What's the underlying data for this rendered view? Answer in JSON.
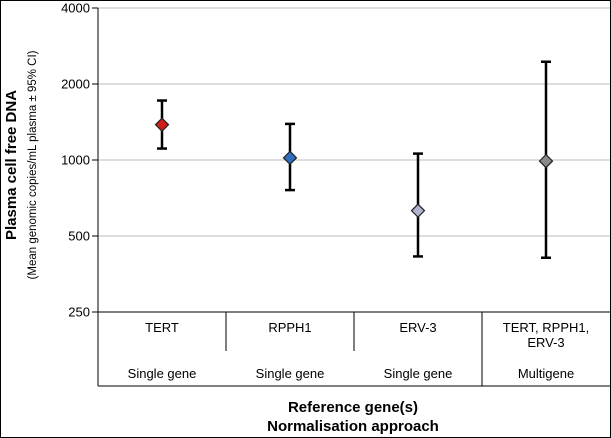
{
  "chart_data": {
    "type": "scatter",
    "title": "",
    "ylabel": "Plasma cell free DNA",
    "ylabel_sub": "(Mean genomic copies/mL plasma ± 95% CI)",
    "xlabel": "Reference gene(s)",
    "xlabel_sub": "Normalisation approach",
    "y_scale": "log2",
    "ylim": [
      250,
      4000
    ],
    "y_ticks": [
      250,
      500,
      1000,
      2000,
      4000
    ],
    "y_tick_labels": [
      "250",
      "500",
      "1000",
      "2000",
      "4000"
    ],
    "grid": true,
    "legend": "none",
    "categories": [
      {
        "label_lines": [
          "TERT"
        ],
        "group": "Single gene"
      },
      {
        "label_lines": [
          "RPPH1"
        ],
        "group": "Single gene"
      },
      {
        "label_lines": [
          "ERV-3"
        ],
        "group": "Single gene"
      },
      {
        "label_lines": [
          "TERT, RPPH1,",
          "ERV-3"
        ],
        "group": "Multigene"
      }
    ],
    "points": [
      {
        "mean": 1380,
        "ci_low": 1110,
        "ci_high": 1720,
        "color": "#cc1f1a"
      },
      {
        "mean": 1020,
        "ci_low": 760,
        "ci_high": 1390,
        "color": "#2f6fbd"
      },
      {
        "mean": 630,
        "ci_low": 415,
        "ci_high": 1060,
        "color": "#b3b3cf"
      },
      {
        "mean": 990,
        "ci_low": 410,
        "ci_high": 2450,
        "color": "#8a8a8a"
      }
    ]
  },
  "colors": {
    "grid": "#bdbdbd",
    "axis": "#000000",
    "frame": "#000000",
    "errorbar": "#000000",
    "marker_edge": "#222222"
  }
}
